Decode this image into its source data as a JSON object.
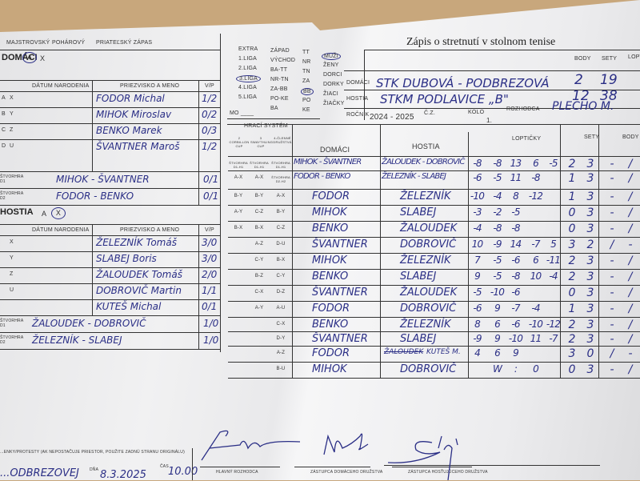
{
  "form": {
    "title": "Zápis o stretnutí v stolnom tenise",
    "match_types": [
      "MAJSTROVSKÝ",
      "POHÁROVÝ",
      "PRIATEĽSKÝ ZÁPAS"
    ],
    "leagues": [
      "EXTRA",
      "1.LIGA",
      "2.LIGA",
      "3.LIGA",
      "4.LIGA",
      "5.LIGA"
    ],
    "selected_league": "3.LIGA",
    "regions": [
      "ZÁPAD",
      "VÝCHOD",
      "BA-TT",
      "NR-TN",
      "ZA-BB",
      "PO-KE",
      "BA"
    ],
    "region_codes": [
      "TT",
      "NR",
      "TN",
      "ZA",
      "BB",
      "PO",
      "KE"
    ],
    "selected_region_code": "BB",
    "categories": [
      "MUŽI",
      "ŽENY",
      "DORCI",
      "DORKY",
      "ŽIACI",
      "ŽIAČKY"
    ],
    "selected_category": "MUŽI",
    "mo_label": "MO ____",
    "hraci_system": "HRACÍ SYSTÉM",
    "system_headers": [
      "2 CORBILLON CUP",
      "3 SWAYTHLING CUP",
      "4-ČLENNÉ DRUŽSTVÁ"
    ]
  },
  "match_info": {
    "domaci_label": "DOMÁCI",
    "hostia_label": "HOSTIA",
    "body_label": "BODY",
    "sety_label": "SETY",
    "lopticky_label": "LOPTIČKY",
    "home_team": "STK DUBOVÁ - PODBREZOVÁ",
    "home_body": "2",
    "home_sety": "19",
    "away_team": "STKM PODLAVICE „B\"",
    "away_body": "12",
    "away_sety": "38",
    "rocnik_label": "ROČNÍK",
    "rocnik": "2024 - 2025",
    "cz_label": "Č.Z.",
    "kolo_label": "KOLO",
    "kolo": "1.",
    "rozhodca_label": "ROZHODCA",
    "rozhodca": "PLECHO M."
  },
  "home": {
    "label": "DOMÁCI",
    "choice": [
      "A",
      "X"
    ],
    "selected": "A",
    "col_datum": "DÁTUM NARODENIA",
    "col_meno": "PRIEZVISKO A MENO",
    "col_vp": "V/P",
    "players": [
      {
        "l1": "A",
        "l2": "X",
        "name": "FODOR Michal",
        "vp": "1/2"
      },
      {
        "l1": "B",
        "l2": "Y",
        "name": "MIHOK Miroslav",
        "vp": "0/2"
      },
      {
        "l1": "C",
        "l2": "Z",
        "name": "BENKO Marek",
        "vp": "0/3"
      },
      {
        "l1": "D",
        "l2": "U",
        "name": "ŠVANTNER Maroš",
        "vp": "1/2"
      }
    ],
    "doubles": [
      {
        "label": "ŠTVORHRA D1",
        "pair": "MIHOK - ŠVANTNER",
        "vp": "0/1"
      },
      {
        "label": "ŠTVORHRA D2",
        "pair": "FODOR - BENKO",
        "vp": "0/1"
      }
    ]
  },
  "away": {
    "label": "HOSTIA",
    "choice": [
      "A",
      "X"
    ],
    "selected": "X",
    "col_datum": "DÁTUM NARODENIA",
    "col_meno": "PRIEZVISKO A MENO",
    "col_vp": "V/P",
    "players": [
      {
        "l1": "",
        "l2": "X",
        "name": "ŽELEZNÍK Tomáš",
        "vp": "3/0"
      },
      {
        "l1": "",
        "l2": "Y",
        "name": "SLABEJ Boris",
        "vp": "3/0"
      },
      {
        "l1": "",
        "l2": "Z",
        "name": "ŽALOUDEK Tomáš",
        "vp": "2/0"
      },
      {
        "l1": "",
        "l2": "U",
        "name": "DOBROVIČ Martin",
        "vp": "1/1"
      },
      {
        "l1": "",
        "l2": "",
        "name": "KUTEŠ Michal",
        "vp": "0/1"
      }
    ],
    "doubles": [
      {
        "label": "ŠTVORHRA D1",
        "pair": "ŽALOUDEK - DOBROVIČ",
        "vp": "1/0"
      },
      {
        "label": "ŠTVORHRA D2",
        "pair": "ŽELEZNÍK - SLABEJ",
        "vp": "1/0"
      }
    ]
  },
  "games": [
    {
      "s": [
        "ŠTVORHRA D1-H1",
        "ŠTVORHRA D1-H1",
        "ŠTVORHRA D1-H1"
      ],
      "home": "MIHOK - ŠVANTNER",
      "away": "ŽALOUDEK - DOBROVIČ",
      "balls": [
        "-8",
        "-8",
        "13",
        "6",
        "-5"
      ],
      "sets": [
        "2",
        "3"
      ],
      "body": [
        "-",
        "/"
      ]
    },
    {
      "s": [
        "A-X",
        "A-X",
        "ŠTVORHRA D2-H2"
      ],
      "home": "FODOR - BENKO",
      "away": "ŽELEZNÍK - SLABEJ",
      "balls": [
        "-6",
        "-5",
        "11",
        "-8",
        ""
      ],
      "sets": [
        "1",
        "3"
      ],
      "body": [
        "-",
        "/"
      ]
    },
    {
      "s": [
        "B-Y",
        "B-Y",
        "A-X"
      ],
      "home": "FODOR",
      "away": "ŽELEZNÍK",
      "balls": [
        "-10",
        "-4",
        "8",
        "-12",
        ""
      ],
      "sets": [
        "1",
        "3"
      ],
      "body": [
        "-",
        "/"
      ]
    },
    {
      "s": [
        "A-Y",
        "C-Z",
        "B-Y"
      ],
      "home": "MIHOK",
      "away": "SLABEJ",
      "balls": [
        "-3",
        "-2",
        "-5",
        "",
        ""
      ],
      "sets": [
        "0",
        "3"
      ],
      "body": [
        "-",
        "/"
      ]
    },
    {
      "s": [
        "B-X",
        "B-X",
        "C-Z"
      ],
      "home": "BENKO",
      "away": "ŽALOUDEK",
      "balls": [
        "-4",
        "-8",
        "-8",
        "",
        ""
      ],
      "sets": [
        "0",
        "3"
      ],
      "body": [
        "-",
        "/"
      ]
    },
    {
      "s": [
        "",
        "A-Z",
        "D-U"
      ],
      "home": "ŠVANTNER",
      "away": "DOBROVIČ",
      "balls": [
        "10",
        "-9",
        "14",
        "-7",
        "5"
      ],
      "sets": [
        "3",
        "2"
      ],
      "body": [
        "/",
        "-"
      ]
    },
    {
      "s": [
        "",
        "C-Y",
        "B-X"
      ],
      "home": "MIHOK",
      "away": "ŽELEZNÍK",
      "balls": [
        "7",
        "-5",
        "-6",
        "6",
        "-11"
      ],
      "sets": [
        "2",
        "3"
      ],
      "body": [
        "-",
        "/"
      ]
    },
    {
      "s": [
        "",
        "B-Z",
        "C-Y"
      ],
      "home": "BENKO",
      "away": "SLABEJ",
      "balls": [
        "9",
        "-5",
        "-8",
        "10",
        "-4"
      ],
      "sets": [
        "2",
        "3"
      ],
      "body": [
        "-",
        "/"
      ]
    },
    {
      "s": [
        "",
        "C-X",
        "D-Z"
      ],
      "home": "ŠVANTNER",
      "away": "ŽALOUDEK",
      "balls": [
        "-5",
        "-10",
        "-6",
        "",
        ""
      ],
      "sets": [
        "0",
        "3"
      ],
      "body": [
        "-",
        "/"
      ]
    },
    {
      "s": [
        "",
        "A-Y",
        "A-U"
      ],
      "home": "FODOR",
      "away": "DOBROVIČ",
      "balls": [
        "-6",
        "9",
        "-7",
        "-4",
        ""
      ],
      "sets": [
        "1",
        "3"
      ],
      "body": [
        "-",
        "/"
      ]
    },
    {
      "s": [
        "",
        "",
        "C-X"
      ],
      "home": "BENKO",
      "away": "ŽELEZNÍK",
      "balls": [
        "8",
        "6",
        "-6",
        "-10",
        "-12"
      ],
      "sets": [
        "2",
        "3"
      ],
      "body": [
        "-",
        "/"
      ]
    },
    {
      "s": [
        "",
        "",
        "D-Y"
      ],
      "home": "ŠVANTNER",
      "away": "SLABEJ",
      "balls": [
        "-9",
        "9",
        "-10",
        "11",
        "-7"
      ],
      "sets": [
        "2",
        "3"
      ],
      "body": [
        "-",
        "/"
      ]
    },
    {
      "s": [
        "",
        "",
        "A-Z"
      ],
      "home": "FODOR",
      "away": "KUTEŠ M.",
      "away_struck": "ŽALOUDEK",
      "balls": [
        "4",
        "6",
        "9",
        "",
        ""
      ],
      "sets": [
        "3",
        "0"
      ],
      "body": [
        "/",
        "-"
      ]
    },
    {
      "s": [
        "",
        "",
        "B-U"
      ],
      "home": "MIHOK",
      "away": "DOBROVIČ",
      "balls": [
        "",
        "W",
        ":",
        "0",
        ""
      ],
      "sets": [
        "0",
        "3"
      ],
      "body": [
        "-",
        "/"
      ]
    }
  ],
  "footer": {
    "remarks_label": "...ENKY/PROTESTY (AK NEPOSTAČUJE PRIESTOR, POUŽITE ZADNÚ STRANU ORIGINÁLU)",
    "place": "...ODBREZOVEJ",
    "dna_label": "DŇA",
    "date": "8.3.2025",
    "cas_label": "ČAS",
    "time": "10.00",
    "sign_labels": [
      "HLAVNÝ ROZHODCA",
      "ZÁSTUPCA DOMÁCEHO DRUŽSTVA",
      "ZÁSTUPCA HOSŤUJÚCEHO DRUŽSTVA"
    ]
  },
  "colors": {
    "ink": "#2b2f86",
    "print": "#333333",
    "paper": "#ededee",
    "table": "#c8a77c"
  }
}
